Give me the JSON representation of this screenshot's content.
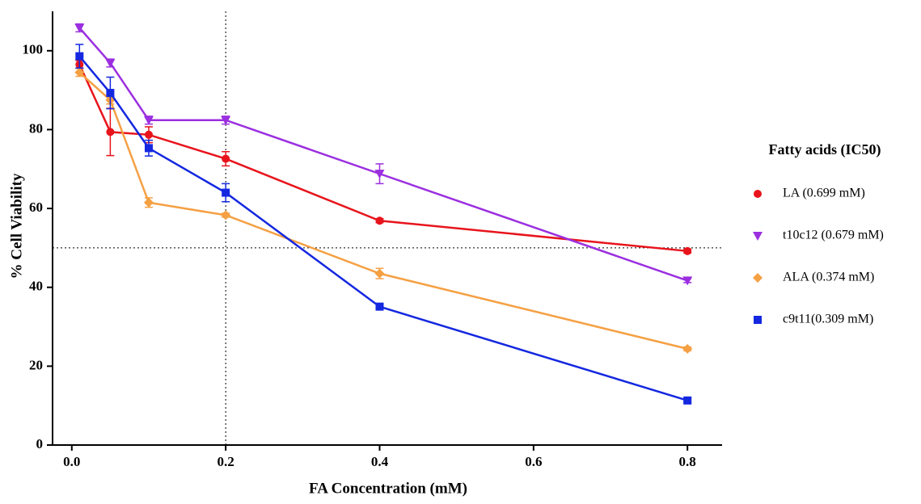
{
  "chart_data": {
    "type": "line",
    "x_label": "FA Concentration (mM)",
    "y_label": "% Cell Viability",
    "legend_title": "Fatty acids (IC50)",
    "x": [
      0.01,
      0.05,
      0.1,
      0.2,
      0.4,
      0.8
    ],
    "series": [
      {
        "name": "LA (0.699 mM)",
        "color": "#e8141c",
        "marker": "circle",
        "values": [
          96.5,
          79.4,
          78.7,
          72.6,
          56.9,
          49.2
        ],
        "errors": [
          1.0,
          6.0,
          2.0,
          1.8,
          0.5,
          0.5
        ]
      },
      {
        "name": "t10c12 (0.679 mM)",
        "color": "#9b2fe0",
        "marker": "triangle-down",
        "values": [
          105.8,
          96.9,
          82.4,
          82.4,
          68.8,
          41.7
        ],
        "errors": [
          1.0,
          1.0,
          1.0,
          1.0,
          2.5,
          0.5
        ]
      },
      {
        "name": "ALA (0.374 mM)",
        "color": "#f5a043",
        "marker": "diamond",
        "values": [
          94.5,
          87.5,
          61.5,
          58.3,
          43.5,
          24.4
        ],
        "errors": [
          1.0,
          1.0,
          1.2,
          0.5,
          1.3,
          0.5
        ]
      },
      {
        "name": "c9t11(0.309 mM)",
        "color": "#1428e0",
        "marker": "square",
        "values": [
          98.6,
          89.3,
          75.3,
          64.0,
          35.1,
          11.3
        ],
        "errors": [
          3.0,
          4.0,
          2.0,
          2.3,
          0.5,
          0.5
        ]
      }
    ],
    "xlim": [
      -0.025,
      0.845
    ],
    "ylim": [
      0,
      110
    ],
    "xticks": [
      {
        "value": 0,
        "label": "0.0"
      },
      0.2,
      0.4,
      0.6,
      0.8
    ],
    "yticks": [
      0,
      20,
      40,
      60,
      80,
      100
    ],
    "reference_lines": {
      "x": 0.2,
      "y": 50
    },
    "legend_position": "right"
  }
}
